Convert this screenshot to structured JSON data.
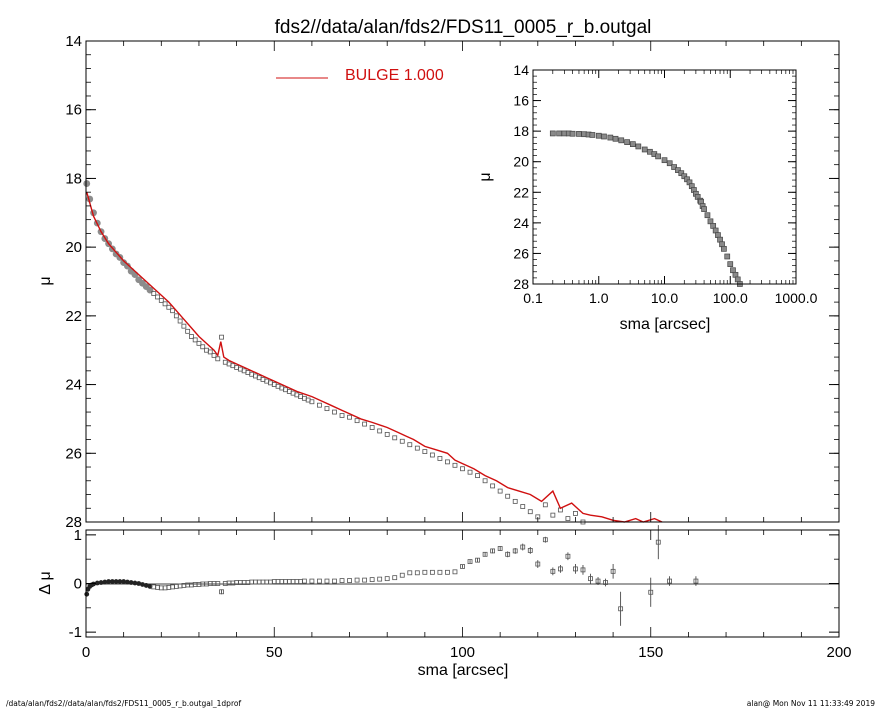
{
  "title": "fds2//data/alan/fds2/FDS11_0005_r_b.outgal",
  "footer": {
    "left": "/data/alan/fds2//data/alan/fds2/FDS11_0005_r_b.outgal_1dprof",
    "right": "alan@  Mon Nov 11 11:33:49 2019"
  },
  "colors": {
    "model": "#d01010",
    "data": "#555555",
    "axes": "#000000"
  },
  "chart_data": [
    {
      "panel": "main",
      "type": "line",
      "ylabel": "μ",
      "xlabel": "",
      "xlim": [
        0,
        200
      ],
      "ylim": [
        28,
        14
      ],
      "y_ticks": [
        "14",
        "16",
        "18",
        "20",
        "22",
        "24",
        "26",
        "28"
      ],
      "legend": {
        "label": "BULGE  1.000",
        "position": "top-center"
      },
      "series": [
        {
          "name": "BULGE  1.000",
          "kind": "line",
          "x": [
            0.2,
            2,
            4,
            6,
            8,
            10,
            12,
            14,
            16,
            18,
            20,
            22,
            24,
            26,
            28,
            30,
            32,
            34,
            35,
            35.8,
            36.6,
            38,
            40,
            42,
            45,
            48,
            50,
            53,
            56,
            60,
            63,
            65,
            68,
            70,
            73,
            76,
            80,
            83,
            85,
            87,
            90,
            93,
            96,
            98,
            100,
            103,
            106,
            109,
            112,
            115,
            118,
            121,
            124,
            126,
            129,
            132,
            134,
            137,
            140,
            143,
            146,
            148,
            151,
            153
          ],
          "y": [
            18.4,
            19.1,
            19.55,
            19.9,
            20.15,
            20.4,
            20.6,
            20.8,
            21.0,
            21.2,
            21.4,
            21.6,
            21.85,
            22.1,
            22.35,
            22.6,
            22.8,
            23.0,
            23.15,
            22.75,
            23.2,
            23.3,
            23.4,
            23.5,
            23.65,
            23.8,
            23.9,
            24.05,
            24.2,
            24.35,
            24.5,
            24.6,
            24.75,
            24.85,
            25.0,
            25.1,
            25.25,
            25.4,
            25.5,
            25.6,
            25.8,
            25.9,
            26.0,
            26.2,
            26.3,
            26.45,
            26.65,
            26.8,
            27.0,
            27.1,
            27.2,
            27.4,
            27.1,
            27.6,
            27.45,
            27.75,
            27.8,
            27.85,
            27.95,
            28.1,
            27.9,
            28.25,
            27.9,
            28.4
          ]
        },
        {
          "name": "",
          "kind": "points",
          "x": [
            0.2,
            1,
            2,
            3,
            4,
            5,
            6,
            7,
            8,
            9,
            10,
            11,
            12,
            13,
            14,
            15,
            16,
            17,
            18,
            19,
            20,
            21,
            22,
            23,
            24,
            25,
            26,
            27,
            28,
            29,
            30,
            31,
            32,
            33,
            34,
            35,
            36,
            37,
            38,
            39,
            40,
            41,
            42,
            43,
            44,
            45,
            46,
            47,
            48,
            49,
            50,
            51,
            52,
            53,
            54,
            55,
            56,
            57,
            58,
            59,
            60,
            62,
            64,
            66,
            68,
            70,
            72,
            74,
            76,
            78,
            80,
            82,
            84,
            86,
            88,
            90,
            92,
            94,
            96,
            98,
            100,
            102,
            104,
            106,
            108,
            110,
            112,
            114,
            116,
            118,
            120,
            122,
            124,
            126,
            128,
            130,
            132,
            134,
            136,
            138,
            140,
            142,
            150,
            152,
            155,
            162
          ],
          "y": [
            18.15,
            18.6,
            19.0,
            19.3,
            19.55,
            19.75,
            19.9,
            20.05,
            20.2,
            20.3,
            20.45,
            20.55,
            20.7,
            20.8,
            20.95,
            21.05,
            21.15,
            21.25,
            21.35,
            21.45,
            21.55,
            21.65,
            21.75,
            21.85,
            22.0,
            22.15,
            22.3,
            22.45,
            22.6,
            22.7,
            22.8,
            22.9,
            23.0,
            23.05,
            23.15,
            23.25,
            22.62,
            23.35,
            23.4,
            23.45,
            23.5,
            23.55,
            23.6,
            23.65,
            23.7,
            23.75,
            23.8,
            23.85,
            23.9,
            23.95,
            24.0,
            24.05,
            24.1,
            24.15,
            24.2,
            24.25,
            24.3,
            24.35,
            24.4,
            24.45,
            24.5,
            24.6,
            24.7,
            24.8,
            24.9,
            24.95,
            25.05,
            25.15,
            25.25,
            25.35,
            25.45,
            25.55,
            25.65,
            25.75,
            25.85,
            25.95,
            26.05,
            26.15,
            26.25,
            26.35,
            26.45,
            26.55,
            26.65,
            26.8,
            26.95,
            27.1,
            27.25,
            27.4,
            27.55,
            27.7,
            27.85,
            27.5,
            27.8,
            27.65,
            27.9,
            27.75,
            28.0,
            28.1,
            28.2,
            28.3,
            28.4,
            28.5,
            28.2,
            28.4,
            28.3,
            28.5
          ]
        }
      ]
    },
    {
      "panel": "inset",
      "type": "scatter",
      "log_x": true,
      "xlabel": "sma [arcsec]",
      "ylabel": "μ",
      "xlim": [
        0.1,
        1000
      ],
      "ylim": [
        28,
        14
      ],
      "x_ticks": [
        "0.1",
        "1.0",
        "10.0",
        "100.0",
        "1000.0"
      ],
      "y_ticks": [
        "14",
        "16",
        "18",
        "20",
        "22",
        "24",
        "26",
        "28"
      ],
      "series": [
        {
          "name": "",
          "kind": "points",
          "x": [
            0.2,
            0.25,
            0.3,
            0.35,
            0.4,
            0.5,
            0.6,
            0.7,
            0.8,
            1.0,
            1.2,
            1.5,
            1.8,
            2.2,
            2.7,
            3.3,
            4,
            5,
            6,
            7,
            8,
            10,
            12,
            14,
            16,
            18,
            20,
            22,
            24,
            26,
            28,
            30,
            32,
            35,
            36,
            38,
            40,
            45,
            50,
            55,
            60,
            65,
            70,
            75,
            80,
            90,
            100,
            110,
            120,
            130,
            140,
            150,
            160
          ],
          "y": [
            18.15,
            18.15,
            18.15,
            18.15,
            18.17,
            18.18,
            18.2,
            18.22,
            18.25,
            18.3,
            18.35,
            18.42,
            18.5,
            18.6,
            18.72,
            18.85,
            19.0,
            19.2,
            19.35,
            19.5,
            19.65,
            19.9,
            20.1,
            20.35,
            20.55,
            20.75,
            20.95,
            21.15,
            21.35,
            21.6,
            21.85,
            22.1,
            22.3,
            22.55,
            22.62,
            22.9,
            23.1,
            23.5,
            23.9,
            24.2,
            24.5,
            24.8,
            25.1,
            25.4,
            25.7,
            26.2,
            26.7,
            27.1,
            27.4,
            27.7,
            28.0,
            28.2,
            28.4
          ]
        }
      ]
    },
    {
      "panel": "residual",
      "type": "scatter",
      "xlabel": "sma [arcsec]",
      "ylabel": "Δ μ",
      "xlim": [
        0,
        200
      ],
      "ylim": [
        -1.1,
        1.1
      ],
      "x_ticks": [
        "0",
        "50",
        "100",
        "150",
        "200"
      ],
      "y_ticks": [
        "1",
        "0",
        "-1"
      ],
      "series": [
        {
          "name": "",
          "kind": "points",
          "x": [
            0.2,
            0.5,
            1,
            1.5,
            2,
            3,
            4,
            5,
            6,
            7,
            8,
            9,
            10,
            11,
            12,
            13,
            14,
            15,
            16,
            17,
            18,
            19,
            20,
            21,
            22,
            23,
            24,
            25,
            26,
            27,
            28,
            29,
            30,
            31,
            32,
            33,
            34,
            35,
            36,
            37,
            38,
            39,
            40,
            41,
            42,
            43,
            44,
            45,
            46,
            47,
            48,
            49,
            50,
            51,
            52,
            53,
            54,
            55,
            56,
            57,
            58,
            60,
            62,
            64,
            66,
            68,
            70,
            72,
            74,
            76,
            78,
            80,
            82,
            84,
            86,
            88,
            90,
            92,
            94,
            96,
            98,
            100,
            102,
            104,
            106,
            108,
            110,
            112,
            114,
            116,
            118,
            120,
            122,
            124,
            126,
            128,
            130,
            132,
            134,
            136,
            138,
            140,
            142,
            150,
            152,
            155,
            162
          ],
          "y": [
            -0.22,
            -0.12,
            -0.06,
            -0.03,
            -0.01,
            0.01,
            0.02,
            0.03,
            0.04,
            0.04,
            0.04,
            0.04,
            0.04,
            0.03,
            0.02,
            0.01,
            0.0,
            -0.02,
            -0.04,
            -0.06,
            -0.07,
            -0.08,
            -0.09,
            -0.09,
            -0.08,
            -0.07,
            -0.06,
            -0.05,
            -0.04,
            -0.03,
            -0.03,
            -0.02,
            -0.02,
            -0.01,
            -0.01,
            0.0,
            0.0,
            0.0,
            -0.17,
            0.0,
            0.01,
            0.01,
            0.02,
            0.02,
            0.02,
            0.02,
            0.03,
            0.03,
            0.03,
            0.03,
            0.03,
            0.03,
            0.04,
            0.04,
            0.04,
            0.04,
            0.04,
            0.04,
            0.04,
            0.04,
            0.05,
            0.05,
            0.05,
            0.05,
            0.05,
            0.06,
            0.06,
            0.07,
            0.07,
            0.08,
            0.09,
            0.1,
            0.12,
            0.17,
            0.22,
            0.22,
            0.23,
            0.23,
            0.23,
            0.23,
            0.24,
            0.35,
            0.45,
            0.48,
            0.6,
            0.67,
            0.72,
            0.6,
            0.67,
            0.75,
            0.68,
            0.4,
            0.9,
            0.25,
            0.3,
            0.56,
            0.3,
            0.28,
            0.1,
            0.05,
            0.02,
            0.25,
            -0.52,
            -0.18,
            0.85,
            0.05,
            0.05
          ],
          "err": [
            0.01,
            0.01,
            0.01,
            0.01,
            0.01,
            0.01,
            0.01,
            0.01,
            0.01,
            0.01,
            0.01,
            0.01,
            0.01,
            0.01,
            0.01,
            0.01,
            0.01,
            0.01,
            0.01,
            0.01,
            0.01,
            0.01,
            0.01,
            0.01,
            0.01,
            0.01,
            0.01,
            0.01,
            0.01,
            0.01,
            0.01,
            0.01,
            0.01,
            0.01,
            0.01,
            0.01,
            0.01,
            0.01,
            0.05,
            0.01,
            0.01,
            0.01,
            0.01,
            0.01,
            0.01,
            0.01,
            0.01,
            0.01,
            0.01,
            0.01,
            0.01,
            0.01,
            0.01,
            0.01,
            0.01,
            0.01,
            0.01,
            0.01,
            0.01,
            0.01,
            0.01,
            0.01,
            0.01,
            0.01,
            0.01,
            0.01,
            0.01,
            0.01,
            0.01,
            0.01,
            0.01,
            0.01,
            0.01,
            0.01,
            0.01,
            0.02,
            0.02,
            0.02,
            0.02,
            0.02,
            0.02,
            0.03,
            0.03,
            0.04,
            0.04,
            0.05,
            0.05,
            0.06,
            0.06,
            0.07,
            0.07,
            0.08,
            0.06,
            0.08,
            0.08,
            0.08,
            0.1,
            0.1,
            0.1,
            0.08,
            0.08,
            0.15,
            0.35,
            0.3,
            0.35,
            0.1,
            0.1
          ]
        }
      ]
    }
  ]
}
